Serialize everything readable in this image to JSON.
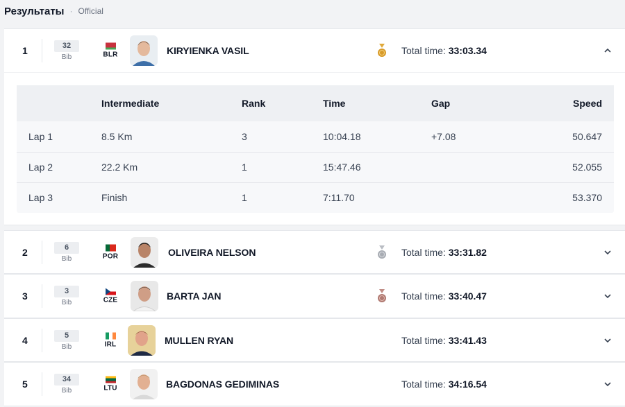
{
  "header": {
    "title": "Результаты",
    "separator": "·",
    "status": "Official"
  },
  "bib_label": "Bib",
  "total_label": "Total time:",
  "colors": {
    "gold": "#d89b2a",
    "silver": "#a8acb3",
    "bronze": "#b07a72"
  },
  "results": [
    {
      "rank": "1",
      "bib": "32",
      "country": "BLR",
      "name": "KIRYIENKA VASIL",
      "medal": "gold",
      "time": "33:03.34",
      "expanded": true,
      "detail": {
        "headers": [
          "",
          "Intermediate",
          "Rank",
          "Time",
          "Gap",
          "Speed"
        ],
        "rows": [
          [
            "Lap 1",
            "8.5 Km",
            "3",
            "10:04.18",
            "+7.08",
            "50.647"
          ],
          [
            "Lap 2",
            "22.2 Km",
            "1",
            "15:47.46",
            "",
            "52.055"
          ],
          [
            "Lap 3",
            "Finish",
            "1",
            "7:11.70",
            "",
            "53.370"
          ]
        ]
      }
    },
    {
      "rank": "2",
      "bib": "6",
      "country": "POR",
      "name": "OLIVEIRA NELSON",
      "medal": "silver",
      "time": "33:31.82",
      "expanded": false
    },
    {
      "rank": "3",
      "bib": "3",
      "country": "CZE",
      "name": "BARTA JAN",
      "medal": "bronze",
      "time": "33:40.47",
      "expanded": false
    },
    {
      "rank": "4",
      "bib": "5",
      "country": "IRL",
      "name": "MULLEN RYAN",
      "medal": "",
      "time": "33:41.43",
      "expanded": false
    },
    {
      "rank": "5",
      "bib": "34",
      "country": "LTU",
      "name": "BAGDONAS GEDIMINAS",
      "medal": "",
      "time": "34:16.54",
      "expanded": false
    }
  ]
}
